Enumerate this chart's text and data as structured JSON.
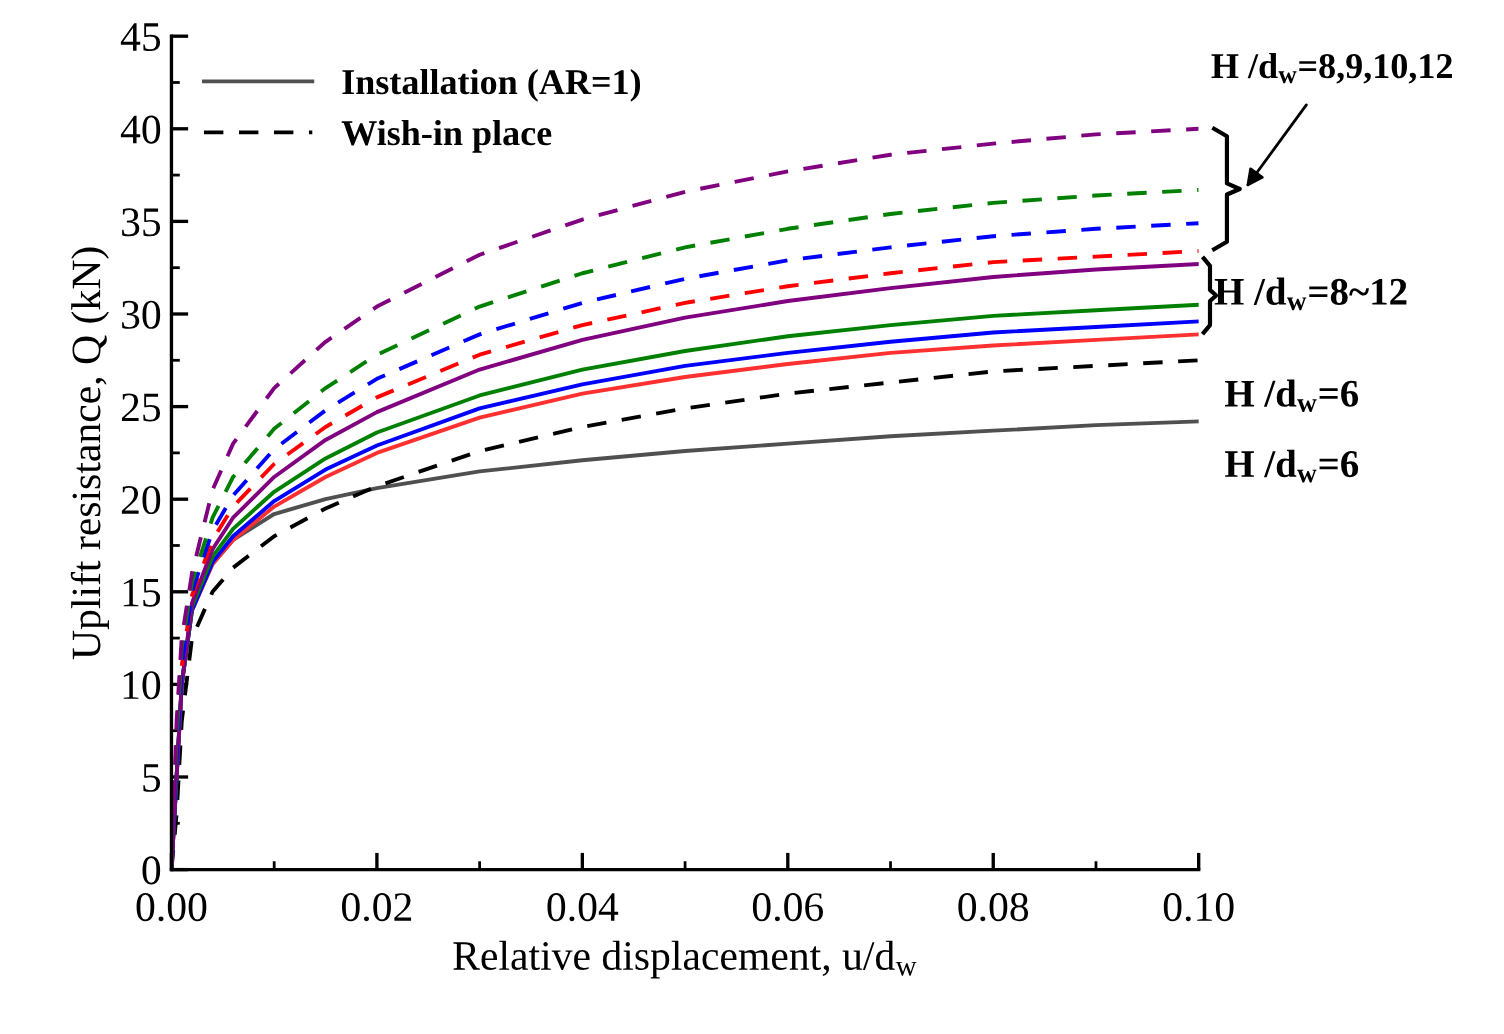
{
  "chart_data": {
    "type": "line",
    "xlabel": "Relative displacement, u/d$_{w}$",
    "ylabel": "Uplift resistance, Q (kN)",
    "x": [
      0,
      0.0005,
      0.001,
      0.002,
      0.004,
      0.006,
      0.01,
      0.015,
      0.02,
      0.03,
      0.04,
      0.05,
      0.06,
      0.07,
      0.08,
      0.09,
      0.1
    ],
    "series": [
      {
        "name": "Installation (AR=1)",
        "color": "#505050",
        "line_style": "solid",
        "values": [
          0,
          5,
          10,
          14,
          16.5,
          17.8,
          19.2,
          20.0,
          20.6,
          21.5,
          22.1,
          22.6,
          23.0,
          23.4,
          23.7,
          24.0,
          24.2
        ]
      },
      {
        "name": "Wish-in place",
        "color": "#000000",
        "line_style": "dashed",
        "values": [
          0,
          3,
          8,
          12.5,
          15,
          16.3,
          18.0,
          19.5,
          20.7,
          22.6,
          23.9,
          24.9,
          25.7,
          26.3,
          26.9,
          27.2,
          27.5
        ]
      },
      {
        "color": "#ff3030",
        "line_style": "solid",
        "values": [
          null,
          null,
          10,
          14,
          16.5,
          17.8,
          19.6,
          21.2,
          22.5,
          24.4,
          25.7,
          26.6,
          27.3,
          27.9,
          28.3,
          28.6,
          28.9
        ]
      },
      {
        "color": "#0000ff",
        "line_style": "solid",
        "values": [
          0,
          5,
          10,
          14,
          16.6,
          18,
          19.9,
          21.6,
          22.9,
          24.9,
          26.2,
          27.2,
          27.9,
          28.5,
          29,
          29.3,
          29.6
        ]
      },
      {
        "color": "#008000",
        "line_style": "solid",
        "values": [
          0,
          5,
          10,
          14.2,
          16.9,
          18.4,
          20.4,
          22.2,
          23.6,
          25.6,
          27,
          28,
          28.8,
          29.4,
          29.9,
          30.2,
          30.5
        ]
      },
      {
        "color": "#800080",
        "line_style": "solid",
        "values": [
          0,
          5,
          10,
          14.4,
          17.3,
          19,
          21.2,
          23.2,
          24.7,
          27,
          28.6,
          29.8,
          30.7,
          31.4,
          32,
          32.4,
          32.7
        ]
      },
      {
        "color": "#ff0000",
        "line_style": "dashed",
        "values": [
          null,
          null,
          11,
          14.8,
          17.8,
          19.6,
          21.9,
          23.9,
          25.5,
          27.8,
          29.4,
          30.6,
          31.5,
          32.2,
          32.8,
          33.1,
          33.4
        ]
      },
      {
        "color": "#0000ff",
        "line_style": "dashed",
        "values": [
          0,
          6,
          11,
          15,
          18.3,
          20.2,
          22.7,
          24.8,
          26.5,
          28.9,
          30.6,
          31.9,
          32.9,
          33.6,
          34.2,
          34.6,
          34.9
        ]
      },
      {
        "color": "#008000",
        "line_style": "dashed",
        "values": [
          0,
          7,
          12,
          15.5,
          19,
          21.2,
          23.8,
          26.0,
          27.8,
          30.4,
          32.2,
          33.6,
          34.6,
          35.4,
          36,
          36.4,
          36.7
        ]
      },
      {
        "color": "#800080",
        "line_style": "dashed",
        "values": [
          0,
          8,
          12.5,
          16,
          20.5,
          23,
          26,
          28.5,
          30.4,
          33.2,
          35.1,
          36.6,
          37.7,
          38.6,
          39.2,
          39.7,
          40
        ]
      }
    ],
    "xlim": [
      0,
      0.1
    ],
    "xticks": [
      {
        "value": 0,
        "label": "0.00"
      },
      {
        "value": 0.02,
        "label": "0.02"
      },
      {
        "value": 0.04,
        "label": "0.04"
      },
      {
        "value": 0.06,
        "label": "0.06"
      },
      {
        "value": 0.08,
        "label": "0.08"
      },
      {
        "value": 0.1,
        "label": "0.10"
      }
    ],
    "ylim": [
      0,
      45
    ],
    "yticks": [
      0,
      5,
      10,
      15,
      20,
      25,
      30,
      35,
      40,
      45
    ],
    "grid": false,
    "legend": "top left",
    "annotations": [
      "H /d$_{w}$=8,9,10,12",
      "H /d$_{w}$=8~12",
      "H /d$_{w}$=6",
      "H /d$_{w}$=6"
    ]
  }
}
